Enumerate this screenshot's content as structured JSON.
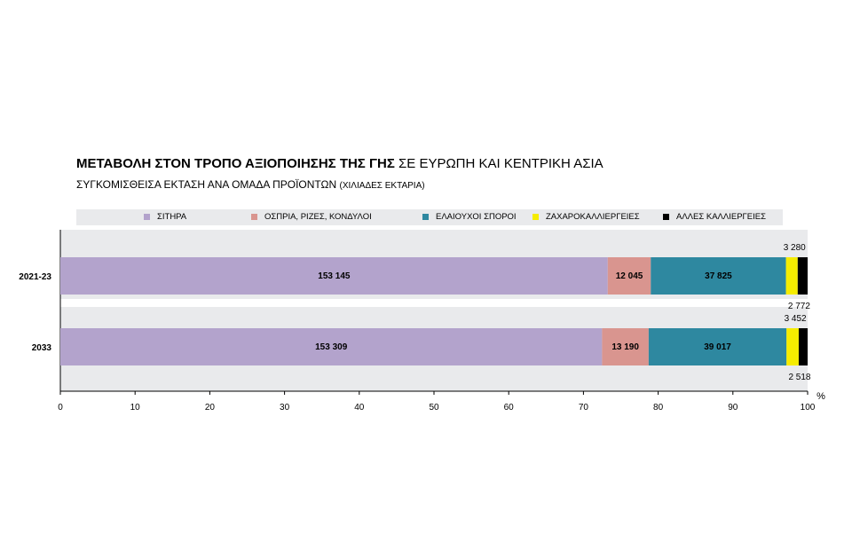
{
  "header": {
    "title_bold": "ΜΕΤΑΒΟΛΗ ΣΤΟΝ ΤΡΟΠΟ ΑΞΙΟΠΟΙΗΣΗΣ ΤΗΣ ΓΗΣ",
    "title_rest": "ΣΕ ΕΥΡΩΠΗ ΚΑΙ ΚΕΝΤΡΙΚΗ ΑΣΙΑ",
    "subtitle_main": "ΣΥΓΚΟΜΙΣΘΕΙΣΑ ΕΚΤΑΣΗ ΑΝΑ ΟΜΑΔΑ ΠΡΟΪΟΝΤΩΝ",
    "subtitle_unit": "(ΧΙΛΙΑΔΕΣ ΕΚΤΑΡΙΑ)"
  },
  "chart_data": {
    "type": "bar",
    "orientation": "horizontal",
    "stacked": "percent",
    "categories": [
      "2021-23",
      "2033"
    ],
    "series": [
      {
        "name": "ΣΙΤΗΡΑ",
        "color": "#b3a3cc",
        "values": [
          153145,
          153309
        ],
        "labels": [
          "153 145",
          "153 309"
        ]
      },
      {
        "name": "ΟΣΠΡΙΑ, ΡΙΖΕΣ, ΚΟΝΔΥΛΟΙ",
        "color": "#d9958f",
        "values": [
          12045,
          13190
        ],
        "labels": [
          "12 045",
          "13 190"
        ]
      },
      {
        "name": "ΕΛΑΙΟΥΧΟΙ ΣΠΟΡΟΙ",
        "color": "#2e88a0",
        "values": [
          37825,
          39017
        ],
        "labels": [
          "37 825",
          "39 017"
        ]
      },
      {
        "name": "ΖΑΧΑΡΟΚΑΛΛΙΕΡΓΕΙΕΣ",
        "color": "#f5ec00",
        "values": [
          3280,
          3452
        ],
        "labels": [
          "3 280",
          "3 452"
        ]
      },
      {
        "name": "ΑΛΛΕΣ ΚΑΛΛΙΕΡΓΕΙΕΣ",
        "color": "#000000",
        "values": [
          2772,
          2518
        ],
        "labels": [
          "2 772",
          "2 518"
        ]
      }
    ],
    "xlim": [
      0,
      100
    ],
    "xticks": [
      "0",
      "10",
      "20",
      "30",
      "40",
      "50",
      "60",
      "70",
      "80",
      "90",
      "100"
    ],
    "xunit": "%",
    "legend_position": "top",
    "background": "#e9eaec"
  }
}
